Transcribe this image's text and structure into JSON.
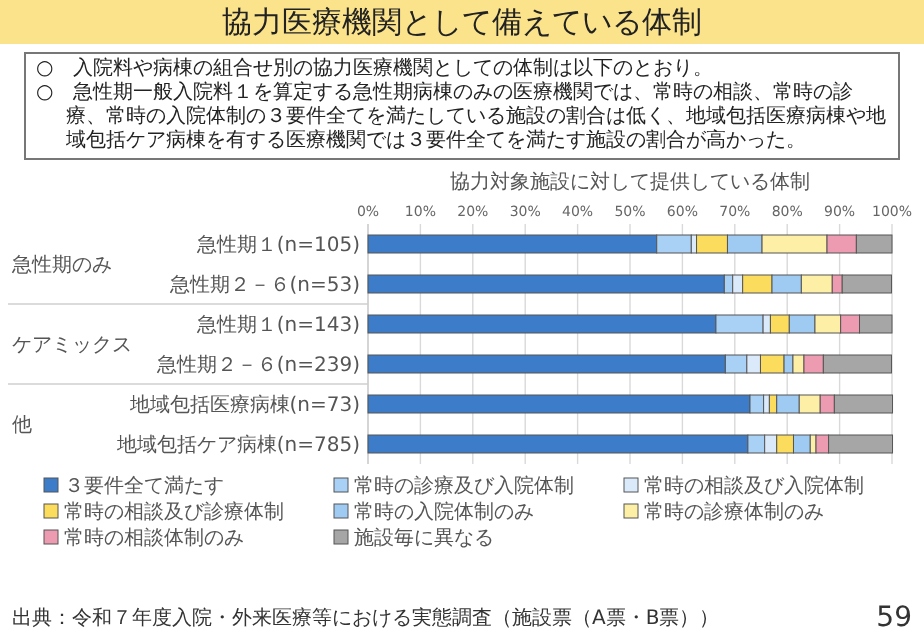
{
  "chart_data": {
    "type": "bar",
    "orientation": "horizontal",
    "stacked": true,
    "title": "協力医療機関として備えている体制",
    "subtitle": "協力対象施設に対して提供している体制",
    "categories": [
      "急性期１(n=105)",
      "急性期２－６(n=53)",
      "急性期１(n=143)",
      "急性期２－６(n=239)",
      "地域包括医療病棟(n=73)",
      "地域包括ケア病棟(n=785)"
    ],
    "series": [
      {
        "name": "３要件全て満たす",
        "color": "#3d7cc9",
        "values": [
          55.1,
          68.0,
          66.4,
          68.2,
          72.9,
          72.5
        ]
      },
      {
        "name": "常時の診療及び入院体制",
        "color": "#a9d0f5",
        "values": [
          6.6,
          1.6,
          9.0,
          4.1,
          2.6,
          3.2
        ]
      },
      {
        "name": "常時の相談及び入院体制",
        "color": "#dbeafb",
        "values": [
          1.0,
          1.9,
          1.4,
          2.6,
          1.1,
          2.3
        ]
      },
      {
        "name": "常時の相談及び診療体制",
        "color": "#fbdc5c",
        "values": [
          5.9,
          5.6,
          3.6,
          4.5,
          1.4,
          3.2
        ]
      },
      {
        "name": "常時の入院体制のみ",
        "color": "#9fcaf2",
        "values": [
          6.6,
          5.6,
          4.9,
          1.7,
          4.3,
          3.2
        ]
      },
      {
        "name": "常時の診療体制のみ",
        "color": "#fdf0a6",
        "values": [
          12.4,
          5.9,
          4.9,
          2.1,
          4.0,
          1.1
        ]
      },
      {
        "name": "常時の相談体制のみ",
        "color": "#ec9bb0",
        "values": [
          5.6,
          1.9,
          3.6,
          3.7,
          2.7,
          2.4
        ]
      },
      {
        "name": "施設毎に異なる",
        "color": "#a6a6a6",
        "values": [
          6.8,
          9.4,
          6.2,
          13.0,
          11.1,
          12.2
        ]
      }
    ],
    "xlim": [
      0,
      100
    ],
    "xticks": [
      {
        "value": 0,
        "label": "0%"
      },
      {
        "value": 10,
        "label": "10%"
      },
      {
        "value": 20,
        "label": "20%"
      },
      {
        "value": 30,
        "label": "30%"
      },
      {
        "value": 40,
        "label": "40%"
      },
      {
        "value": 50,
        "label": "50%"
      },
      {
        "value": 60,
        "label": "60%"
      },
      {
        "value": 70,
        "label": "70%"
      },
      {
        "value": 80,
        "label": "80%"
      },
      {
        "value": 90,
        "label": "90%"
      },
      {
        "value": 100,
        "label": "100%"
      }
    ],
    "grid": "x",
    "legend": "bottom",
    "annotations": [
      "○　入院料や病棟の組合せ別の協力医療機関としての体制は以下のとおり。",
      "○　急性期一般入院料１を算定する急性期病棟のみの医療機関では、常時の相談、常時の診療、常時の入院体制の３要件全てを満たしている施設の割合は低く、地域包括医療病棟や地域包括ケア病棟を有する医療機関では３要件全てを満たす施設の割合が高かった。",
      "急性期のみ",
      "ケアミックス",
      "他",
      "出典：令和７年度入院・外来医療等における実態調査（施設票（A票・B票））",
      "59"
    ]
  }
}
